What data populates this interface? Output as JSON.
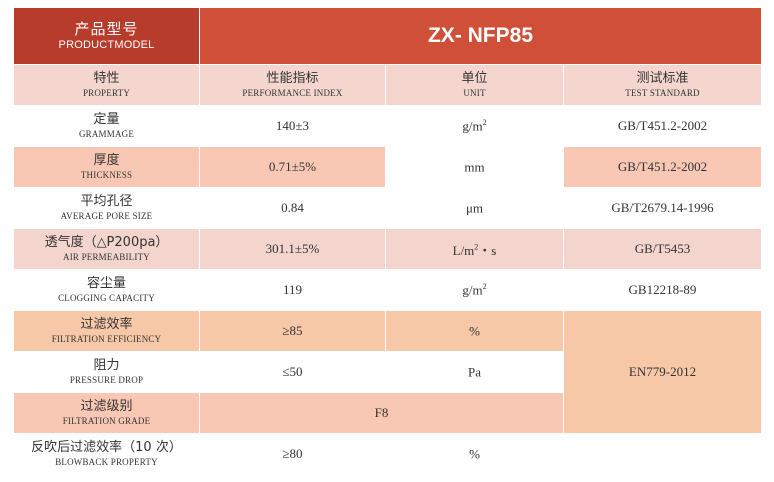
{
  "header": {
    "label_zh": "产品型号",
    "label_en": "PRODUCTMODEL",
    "model": "ZX- NFP85"
  },
  "columns": [
    {
      "zh": "特性",
      "en": "PROPERTY"
    },
    {
      "zh": "性能指标",
      "en": "PERFORMANCE INDEX"
    },
    {
      "zh": "单位",
      "en": "UNIT"
    },
    {
      "zh": "测试标准",
      "en": "TEST STANDARD"
    }
  ],
  "rows": [
    {
      "zh": "定量",
      "en": "GRAMMAGE",
      "value": "140±3",
      "unit_base": "g/m",
      "unit_sup": "2",
      "unit_tail": "",
      "standard": "GB/T451.2-2002"
    },
    {
      "zh": "厚度",
      "en": "THICKNESS",
      "value": "0.71±5%",
      "unit_base": "mm",
      "unit_sup": "",
      "unit_tail": "",
      "standard": "GB/T451.2-2002"
    },
    {
      "zh": "平均孔径",
      "en": "AVERAGE PORE SIZE",
      "value": "0.84",
      "unit_base": "μm",
      "unit_sup": "",
      "unit_tail": "",
      "standard": "GB/T2679.14-1996"
    },
    {
      "zh": "透气度（△P200pa）",
      "en": "AIR PERMEABILITY",
      "value": "301.1±5%",
      "unit_base": "L/m",
      "unit_sup": "2",
      "unit_tail": "・s",
      "standard": "GB/T5453"
    },
    {
      "zh": "容尘量",
      "en": "CLOGGING CAPACITY",
      "value": "119",
      "unit_base": "g/m",
      "unit_sup": "2",
      "unit_tail": "",
      "standard": "GB12218-89"
    },
    {
      "zh": "过滤效率",
      "en": "FILTRATION EFFICIENCY",
      "value": "≥85",
      "unit_base": "%",
      "unit_sup": "",
      "unit_tail": ""
    },
    {
      "zh": "阻力",
      "en": "PRESSURE DROP",
      "value": "≤50",
      "unit_base": "Pa",
      "unit_sup": "",
      "unit_tail": ""
    },
    {
      "zh": "过滤级别",
      "en": "FILTRATION GRADE",
      "value": "F8"
    },
    {
      "zh": "反吹后过滤效率（10 次）",
      "en": "BLOWBACK PROPERTY",
      "value": "≥80",
      "unit_base": "%",
      "unit_sup": "",
      "unit_tail": ""
    }
  ],
  "shared_standard": "EN779-2012",
  "colors": {
    "header_dark": "#b83c2c",
    "header_light": "#cf4f38",
    "peach": "#f8c8b4",
    "pink": "#f3d5cd",
    "orange": "#f7c8a8"
  }
}
